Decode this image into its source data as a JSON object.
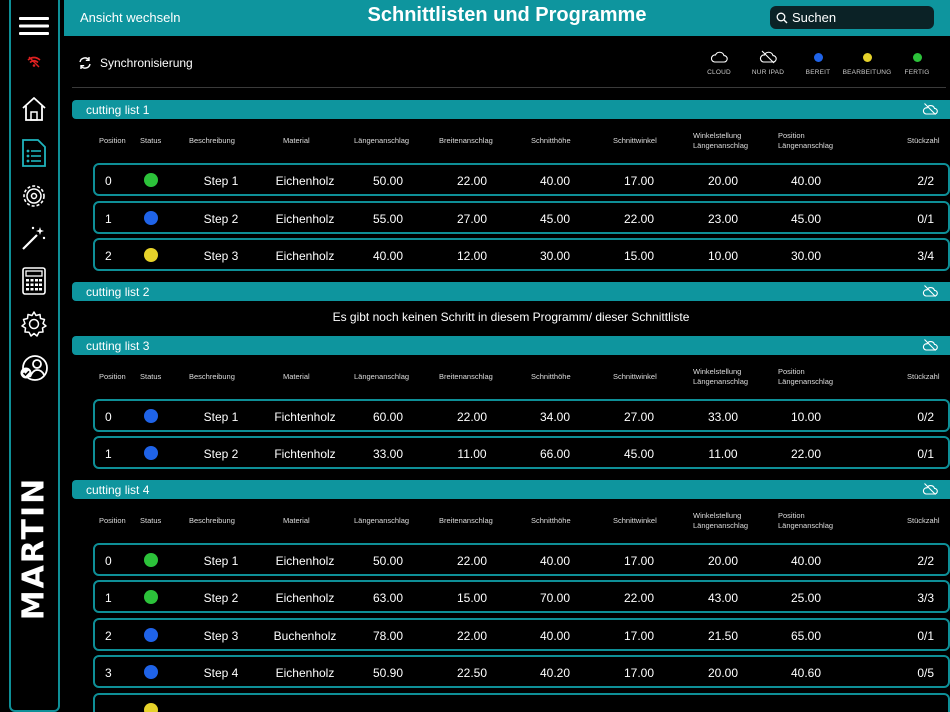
{
  "header": {
    "switch_view": "Ansicht wechseln",
    "title": "Schnittlisten und Programme",
    "search_placeholder": "Suchen"
  },
  "sync": {
    "label": "Synchronisierung"
  },
  "legend": [
    {
      "label": "CLOUD",
      "icon": "cloud-icon"
    },
    {
      "label": "NUR IPAD",
      "icon": "cloud-off-icon"
    },
    {
      "label": "BEREIT",
      "color": "#1f63e8"
    },
    {
      "label": "BEARBEITUNG",
      "color": "#e6d22a"
    },
    {
      "label": "FERTIG",
      "color": "#2cc23a"
    }
  ],
  "columns": {
    "position": "Position",
    "status": "Status",
    "beschreibung": "Beschreibung",
    "material": "Material",
    "laengenanschlag": "Längenanschlag",
    "breitenanschlag": "Breitenanschlag",
    "schnitthoehe": "Schnitthöhe",
    "schnittwinkel": "Schnittwinkel",
    "winkel_line1": "Winkelstellung",
    "winkel_line2": "Längenanschlag",
    "pos_line1": "Position",
    "pos_line2": "Längenanschlag",
    "stueckzahl": "Stückzahl"
  },
  "empty_message": "Es gibt noch keinen Schritt in diesem Programm/ dieser Schnittliste",
  "status_colors": {
    "green": "#2cc23a",
    "blue": "#1f63e8",
    "yellow": "#e6d22a"
  },
  "lists": {
    "l1": {
      "name": "cutting list 1",
      "rows": [
        {
          "pos": "0",
          "status": "green",
          "desc": "Step 1",
          "mat": "Eichenholz",
          "la": "50.00",
          "ba": "22.00",
          "sh": "40.00",
          "sw": "17.00",
          "wl": "20.00",
          "pl": "40.00",
          "qty": "2/2"
        },
        {
          "pos": "1",
          "status": "blue",
          "desc": "Step 2",
          "mat": "Eichenholz",
          "la": "55.00",
          "ba": "27.00",
          "sh": "45.00",
          "sw": "22.00",
          "wl": "23.00",
          "pl": "45.00",
          "qty": "0/1"
        },
        {
          "pos": "2",
          "status": "yellow",
          "desc": "Step 3",
          "mat": "Eichenholz",
          "la": "40.00",
          "ba": "12.00",
          "sh": "30.00",
          "sw": "15.00",
          "wl": "10.00",
          "pl": "30.00",
          "qty": "3/4"
        }
      ]
    },
    "l2": {
      "name": "cutting list 2"
    },
    "l3": {
      "name": "cutting list 3",
      "rows": [
        {
          "pos": "0",
          "status": "blue",
          "desc": "Step 1",
          "mat": "Fichtenholz",
          "la": "60.00",
          "ba": "22.00",
          "sh": "34.00",
          "sw": "27.00",
          "wl": "33.00",
          "pl": "10.00",
          "qty": "0/2"
        },
        {
          "pos": "1",
          "status": "blue",
          "desc": "Step 2",
          "mat": "Fichtenholz",
          "la": "33.00",
          "ba": "11.00",
          "sh": "66.00",
          "sw": "45.00",
          "wl": "11.00",
          "pl": "22.00",
          "qty": "0/1"
        }
      ]
    },
    "l4": {
      "name": "cutting list 4",
      "rows": [
        {
          "pos": "0",
          "status": "green",
          "desc": "Step 1",
          "mat": "Eichenholz",
          "la": "50.00",
          "ba": "22.00",
          "sh": "40.00",
          "sw": "17.00",
          "wl": "20.00",
          "pl": "40.00",
          "qty": "2/2"
        },
        {
          "pos": "1",
          "status": "green",
          "desc": "Step 2",
          "mat": "Eichenholz",
          "la": "63.00",
          "ba": "15.00",
          "sh": "70.00",
          "sw": "22.00",
          "wl": "43.00",
          "pl": "25.00",
          "qty": "3/3"
        },
        {
          "pos": "2",
          "status": "blue",
          "desc": "Step 3",
          "mat": "Buchenholz",
          "la": "78.00",
          "ba": "22.00",
          "sh": "40.00",
          "sw": "17.00",
          "wl": "21.50",
          "pl": "65.00",
          "qty": "0/1"
        },
        {
          "pos": "3",
          "status": "blue",
          "desc": "Step 4",
          "mat": "Eichenholz",
          "la": "50.90",
          "ba": "22.50",
          "sh": "40.20",
          "sw": "17.00",
          "wl": "20.00",
          "pl": "40.60",
          "qty": "0/5"
        },
        {
          "pos": "",
          "status": "yellow",
          "desc": "",
          "mat": "",
          "la": "",
          "ba": "",
          "sh": "",
          "sw": "",
          "wl": "",
          "pl": "",
          "qty": ""
        }
      ]
    }
  },
  "brand": {
    "logo_text": "MARTIN"
  }
}
